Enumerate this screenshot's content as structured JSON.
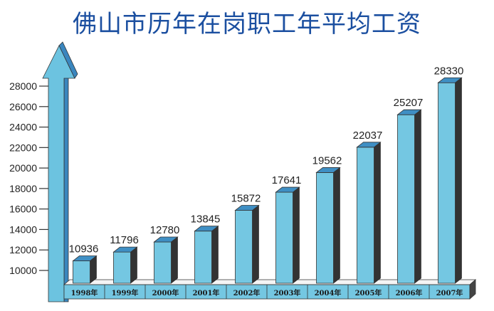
{
  "title": "佛山市历年在岗职工年平均工资",
  "colors": {
    "title": "#1b4fa0",
    "bar_front": "#74c7e2",
    "bar_top": "#3f8fc4",
    "bar_side": "#333333",
    "axis_arrow": "#6cc3e0",
    "axis_arrow_dark": "#3a86be"
  },
  "chart_data": {
    "type": "bar",
    "title": "佛山市历年在岗职工年平均工资",
    "xlabel": "",
    "ylabel": "",
    "categories": [
      "1998年",
      "1999年",
      "2000年",
      "2001年",
      "2002年",
      "2003年",
      "2004年",
      "2005年",
      "2006年",
      "2007年"
    ],
    "values": [
      10936,
      11796,
      12780,
      13845,
      15872,
      17641,
      19562,
      22037,
      25207,
      28330
    ],
    "yticks": [
      10000,
      12000,
      14000,
      16000,
      18000,
      20000,
      22000,
      24000,
      26000,
      28000
    ],
    "ylim": [
      9000,
      28000
    ],
    "grid": false,
    "legend": "none",
    "style": "3d-bar with up-arrow y-axis"
  }
}
